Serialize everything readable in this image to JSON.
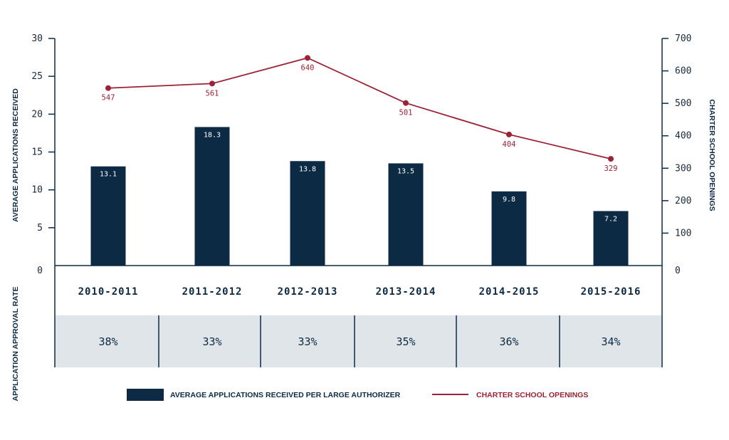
{
  "chart_data": {
    "type": "bar+line",
    "categories": [
      "2010-2011",
      "2011-2012",
      "2012-2013",
      "2013-2014",
      "2014-2015",
      "2015-2016"
    ],
    "series": [
      {
        "name": "AVERAGE APPLICATIONS RECEIVED PER LARGE AUTHORIZER",
        "type": "bar",
        "axis": "left",
        "values": [
          13.1,
          18.3,
          13.8,
          13.5,
          9.8,
          7.2
        ],
        "labels": [
          "13.1",
          "18.3",
          "13.8",
          "13.5",
          "9.8",
          "7.2"
        ]
      },
      {
        "name": "CHARTER SCHOOL OPENINGS",
        "type": "line",
        "axis": "right",
        "values": [
          547,
          561,
          640,
          501,
          404,
          329
        ],
        "labels": [
          "547",
          "561",
          "640",
          "501",
          "404",
          "329"
        ]
      }
    ],
    "ylabel_left": "AVERAGE APPLICATIONS RECEIVED",
    "ylabel_right": "CHARTER SCHOOL OPENINGS",
    "ylim_left": [
      0,
      30
    ],
    "ylim_right": [
      0,
      700
    ],
    "yticks_left": [
      "0",
      "5",
      "10",
      "15",
      "20",
      "25",
      "30"
    ],
    "yticks_right": [
      "0",
      "100",
      "200",
      "300",
      "400",
      "500",
      "600",
      "700"
    ],
    "table": {
      "label": "APPLICATION APPROVAL RATE",
      "values": [
        "38%",
        "33%",
        "33%",
        "35%",
        "36%",
        "34%"
      ]
    },
    "legend_position": "bottom",
    "grid": false,
    "colors": {
      "bar": "#0d2a44",
      "line": "#9b2335",
      "table_bg": "#dfe5e9",
      "axis": "#0d2a44"
    }
  }
}
